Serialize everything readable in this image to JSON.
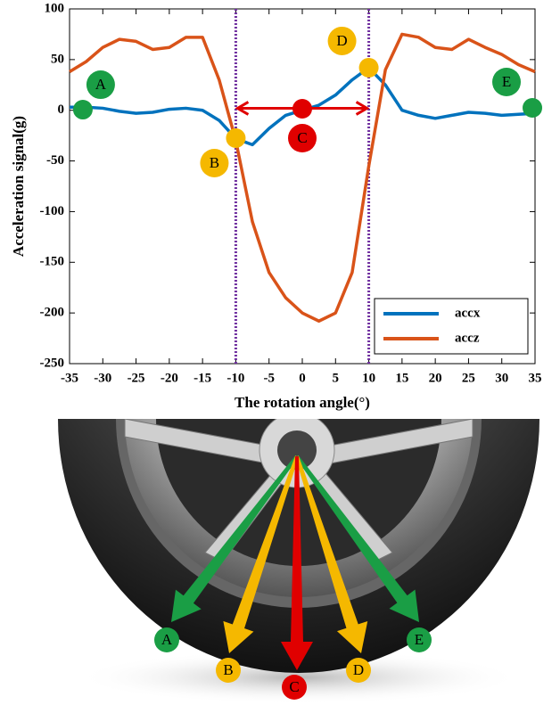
{
  "chart_data": {
    "type": "line",
    "y_label": "Acceleration signal(g)",
    "x_label": "The rotation angle(°)",
    "x": [
      -35,
      -32.5,
      -30,
      -27.5,
      -25,
      -22.5,
      -20,
      -17.5,
      -15,
      -12.5,
      -10,
      -7.5,
      -5,
      -2.5,
      0,
      2.5,
      5,
      7.5,
      10,
      12.5,
      15,
      17.5,
      20,
      22.5,
      25,
      27.5,
      30,
      32.5,
      35
    ],
    "series": [
      {
        "name": "accx",
        "color": "#0072bd",
        "values": [
          3,
          3,
          2,
          -1,
          -3,
          -2,
          1,
          2,
          0,
          -10,
          -28,
          -34,
          -18,
          -5,
          0,
          5,
          15,
          30,
          42,
          25,
          0,
          -5,
          -8,
          -5,
          -2,
          -3,
          -5,
          -4,
          -3
        ]
      },
      {
        "name": "accz",
        "color": "#d95319",
        "values": [
          38,
          48,
          62,
          70,
          68,
          60,
          62,
          72,
          72,
          30,
          -30,
          -110,
          -160,
          -185,
          -200,
          -208,
          -200,
          -160,
          -55,
          40,
          75,
          72,
          62,
          60,
          70,
          62,
          55,
          45,
          38
        ]
      }
    ],
    "xlim": [
      -35,
      35
    ],
    "xticks": [
      -35,
      -30,
      -25,
      -20,
      -15,
      -10,
      -5,
      0,
      5,
      10,
      15,
      20,
      25,
      30,
      35
    ],
    "ylim": [
      -250,
      100
    ],
    "yticks": [
      -250,
      -200,
      -150,
      -100,
      -50,
      0,
      50,
      100
    ],
    "legend": "lower right",
    "vlines": {
      "x": [
        -10,
        10
      ],
      "color": "#7030a0"
    },
    "range_arrow": {
      "from": -10,
      "to": 10,
      "y": 2,
      "color": "#e00000"
    },
    "annotations": [
      {
        "label": "A",
        "x": -33,
        "y": 0.6,
        "color": "#1a9e45"
      },
      {
        "label": "B",
        "x": -10,
        "y": -27.5,
        "color": "#f5b800"
      },
      {
        "label": "C",
        "x": 0,
        "y": 1.5,
        "color": "#e00000"
      },
      {
        "label": "D",
        "x": 10,
        "y": 42,
        "color": "#f5b800"
      },
      {
        "label": "E",
        "x": 34.6,
        "y": 2.4,
        "color": "#1a9e45"
      }
    ]
  },
  "wheel": {
    "labels": [
      "A",
      "B",
      "C",
      "D",
      "E"
    ]
  }
}
